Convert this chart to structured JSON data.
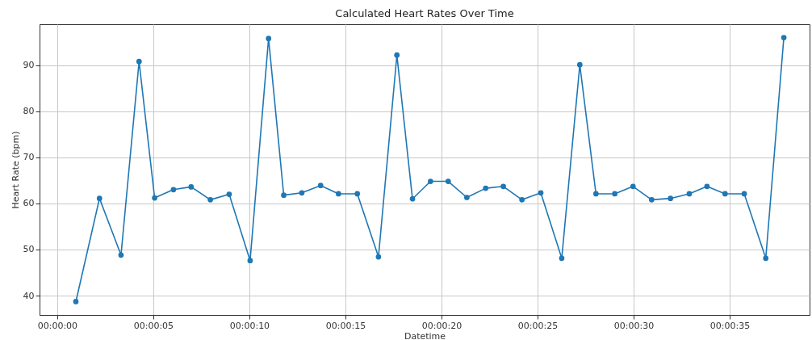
{
  "chart_data": {
    "type": "line",
    "title": "Calculated Heart Rates Over Time",
    "xlabel": "Datetime",
    "ylabel": "Heart Rate (bpm)",
    "x": [
      0.97,
      2.2,
      3.32,
      4.26,
      5.07,
      6.05,
      6.97,
      7.97,
      8.95,
      10.04,
      11.0,
      11.79,
      12.73,
      13.71,
      14.64,
      15.62,
      16.72,
      17.68,
      18.49,
      19.43,
      20.35,
      21.32,
      22.3,
      23.22,
      24.19,
      25.17,
      26.26,
      27.2,
      28.04,
      29.02,
      29.97,
      30.94,
      31.92,
      32.9,
      33.82,
      34.76,
      35.76,
      36.88,
      37.82
    ],
    "series": [
      {
        "color": "#1f77b4",
        "values": [
          38.7,
          61.1,
          48.8,
          90.8,
          61.2,
          63.0,
          63.6,
          60.8,
          62.0,
          47.6,
          95.8,
          61.8,
          62.3,
          63.9,
          62.1,
          62.1,
          48.4,
          92.2,
          61.0,
          64.8,
          64.8,
          61.3,
          63.3,
          63.7,
          60.8,
          62.3,
          48.1,
          90.1,
          62.1,
          62.1,
          63.7,
          60.8,
          61.1,
          62.1,
          63.7,
          62.1,
          62.1,
          48.1,
          96.0
        ]
      }
    ],
    "xlim": [
      -0.92,
      39.16
    ],
    "ylim": [
      35.8,
      98.9
    ],
    "xticks": [
      {
        "value": 0,
        "label": "00:00:00"
      },
      {
        "value": 5,
        "label": "00:00:05"
      },
      {
        "value": 10,
        "label": "00:00:10"
      },
      {
        "value": 15,
        "label": "00:00:15"
      },
      {
        "value": 20,
        "label": "00:00:20"
      },
      {
        "value": 25,
        "label": "00:00:25"
      },
      {
        "value": 30,
        "label": "00:00:30"
      },
      {
        "value": 35,
        "label": "00:00:35"
      }
    ],
    "yticks": [
      40,
      50,
      60,
      70,
      80,
      90
    ],
    "grid": true,
    "marker": "circle",
    "line_style": "solid"
  }
}
